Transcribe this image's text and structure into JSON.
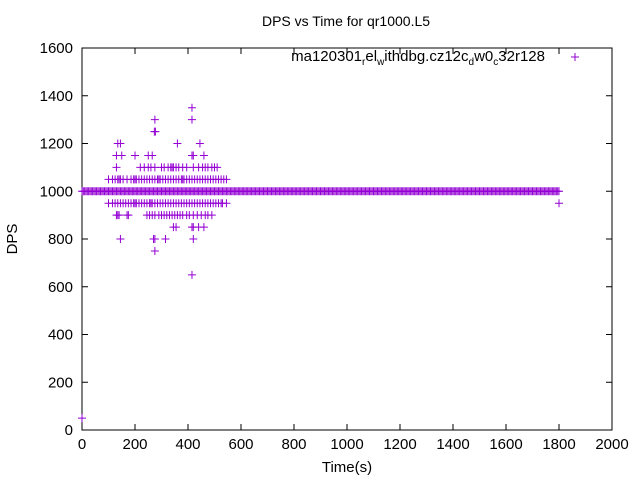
{
  "chart_data": {
    "type": "scatter",
    "title": "DPS vs Time for qr1000.L5",
    "xlabel": "Time(s)",
    "ylabel": "DPS",
    "xlim": [
      0,
      2000
    ],
    "ylim": [
      0,
      1600
    ],
    "xticks": [
      0,
      200,
      400,
      600,
      800,
      1000,
      1200,
      1400,
      1600,
      1800,
      2000
    ],
    "yticks": [
      0,
      200,
      400,
      600,
      800,
      1000,
      1200,
      1400,
      1600
    ],
    "grid": false,
    "legend_position": "top-right",
    "series_color": "#9400D3",
    "series": [
      {
        "name": "ma120301_rel_withdbg.cz12c_dw0_c32r128",
        "name_parts": [
          "ma120301",
          "r",
          "el",
          "w",
          "ithdbg.cz12c",
          "d",
          "w0",
          "c",
          "32r128"
        ],
        "baseline": {
          "y": 1000,
          "x_start": 0,
          "x_end": 1800,
          "x_step": 1
        },
        "levels": [
          {
            "y": 1350,
            "x": [
              415
            ]
          },
          {
            "y": 1300,
            "x": [
              275,
              415
            ]
          },
          {
            "y": 1250,
            "x": [
              273,
              277
            ]
          },
          {
            "y": 1200,
            "x": [
              135,
              145,
              360,
              445
            ]
          },
          {
            "y": 1150,
            "x": [
              130,
              150,
              200,
              250,
              265,
              415,
              420,
              460
            ]
          },
          {
            "y": 1100,
            "x": [
              130,
              220,
              235,
              250,
              260,
              275,
              300,
              310,
              325,
              335,
              340,
              345,
              355,
              365,
              380,
              395,
              420,
              440,
              455,
              465,
              475,
              490,
              500,
              510
            ]
          },
          {
            "y": 1050,
            "x": [
              100,
              115,
              125,
              135,
              140,
              145,
              155,
              170,
              185,
              195,
              200,
              205,
              215,
              225,
              235,
              245,
              255,
              265,
              275,
              285,
              290,
              295,
              305,
              315,
              325,
              335,
              345,
              355,
              365,
              375,
              380,
              385,
              395,
              405,
              415,
              425,
              435,
              445,
              455,
              465,
              475,
              485,
              495,
              505,
              515,
              525,
              535,
              545
            ]
          },
          {
            "y": 950,
            "x": [
              100,
              115,
              125,
              135,
              145,
              155,
              165,
              175,
              185,
              195,
              200,
              205,
              215,
              225,
              235,
              245,
              255,
              260,
              265,
              275,
              285,
              295,
              305,
              315,
              325,
              335,
              345,
              355,
              365,
              375,
              385,
              395,
              405,
              415,
              425,
              435,
              445,
              455,
              465,
              475,
              485,
              495,
              505,
              515,
              525,
              530,
              545,
              1800
            ]
          },
          {
            "y": 900,
            "x": [
              130,
              135,
              140,
              170,
              175,
              245,
              255,
              265,
              275,
              290,
              300,
              310,
              320,
              330,
              340,
              350,
              360,
              370,
              380,
              395,
              405,
              420,
              435,
              450,
              465,
              475,
              490
            ]
          },
          {
            "y": 850,
            "x": [
              345,
              355,
              415,
              420,
              440,
              460
            ]
          },
          {
            "y": 800,
            "x": [
              145,
              270,
              275,
              315,
              420
            ]
          },
          {
            "y": 750,
            "x": [
              275
            ]
          },
          {
            "y": 650,
            "x": [
              415
            ]
          },
          {
            "y": 50,
            "x": [
              0
            ]
          }
        ]
      }
    ]
  }
}
